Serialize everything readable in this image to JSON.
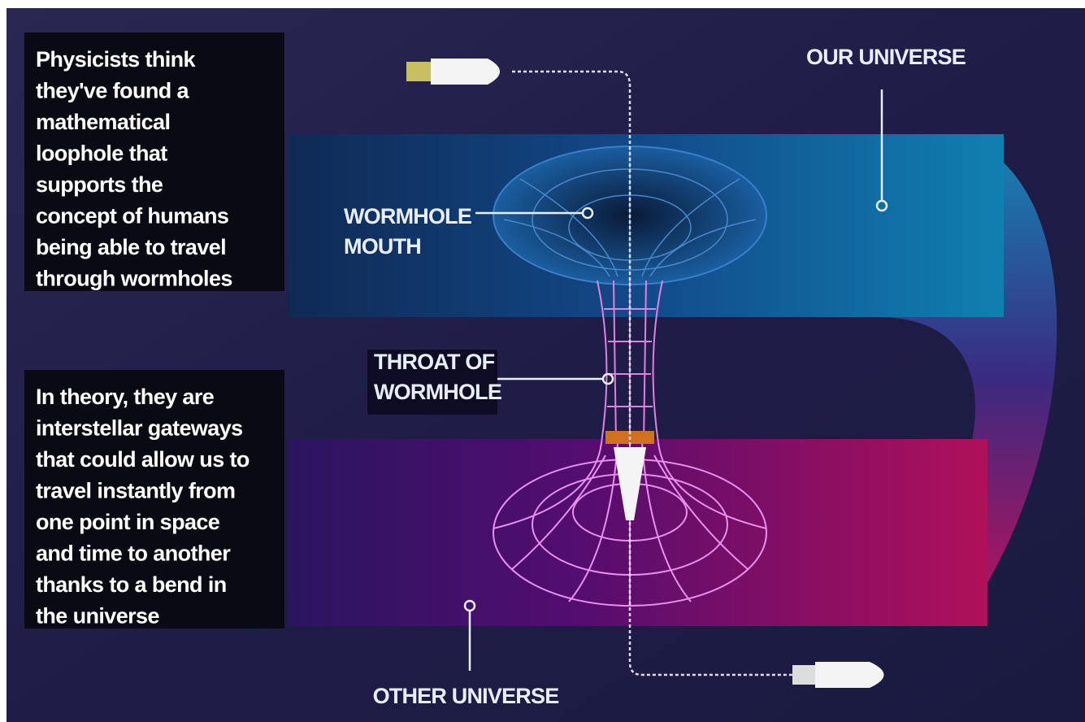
{
  "panels": [
    {
      "lines": [
        "Physicists think",
        "they've found a",
        "mathematical",
        "loophole that",
        "supports the",
        "concept of humans",
        "being able to travel",
        "through wormholes"
      ]
    },
    {
      "lines": [
        "In theory, they are",
        "interstellar gateways",
        "that could allow us to",
        "travel instantly from",
        "one point in space",
        "and time to another",
        "thanks to a bend in",
        "the universe"
      ]
    }
  ],
  "labels": [
    {
      "lines": [
        "OUR UNIVERSE"
      ]
    },
    {
      "lines": [
        "WORMHOLE",
        "MOUTH"
      ]
    },
    {
      "lines": [
        "THROAT OF",
        "WORMHOLE"
      ]
    },
    {
      "lines": [
        "OTHER UNIVERSE"
      ]
    }
  ]
}
